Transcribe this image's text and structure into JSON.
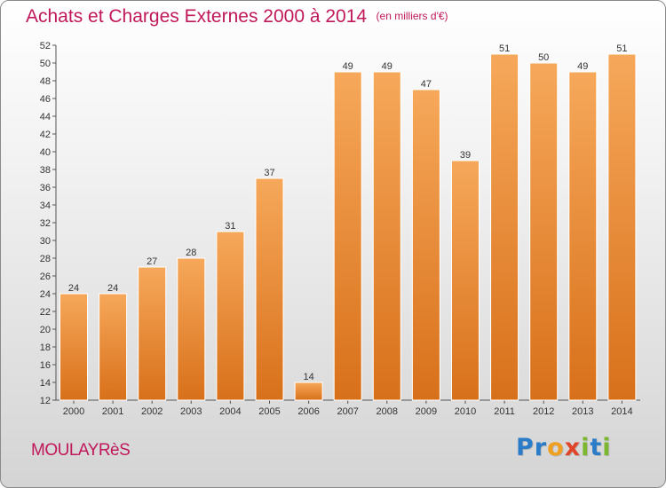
{
  "header": {
    "title": "Achats et Charges Externes 2000 à 2014",
    "subtitle": "(en milliers d'€)"
  },
  "footer": {
    "commune": "MOULAYRèS",
    "brand_letters": [
      {
        "char": "P",
        "color": "#2b7cc8"
      },
      {
        "char": "r",
        "color": "#2b7cc8"
      },
      {
        "char": "o",
        "color": "#f0a020"
      },
      {
        "char": "x",
        "color": "#e0452a"
      },
      {
        "char": "i",
        "color": "#7cb82f"
      },
      {
        "char": "t",
        "color": "#2b7cc8"
      },
      {
        "char": "i",
        "color": "#7cb82f"
      }
    ]
  },
  "colors": {
    "bar_light": "#f6a85a",
    "bar_dark": "#d8701a",
    "title": "#c0185a"
  },
  "chart_data": {
    "type": "bar",
    "title": "Achats et Charges Externes 2000 à 2014",
    "subtitle": "(en milliers d'€)",
    "categories": [
      "2000",
      "2001",
      "2002",
      "2003",
      "2004",
      "2005",
      "2006",
      "2007",
      "2008",
      "2009",
      "2010",
      "2011",
      "2012",
      "2013",
      "2014"
    ],
    "values": [
      24,
      24,
      27,
      28,
      31,
      37,
      14,
      49,
      49,
      47,
      39,
      51,
      50,
      49,
      51
    ],
    "ylim": [
      12,
      52
    ],
    "yticks": [
      12,
      14,
      16,
      18,
      20,
      22,
      24,
      26,
      28,
      30,
      32,
      34,
      36,
      38,
      40,
      42,
      44,
      46,
      48,
      50,
      52
    ],
    "grid": false,
    "legend": "none"
  }
}
